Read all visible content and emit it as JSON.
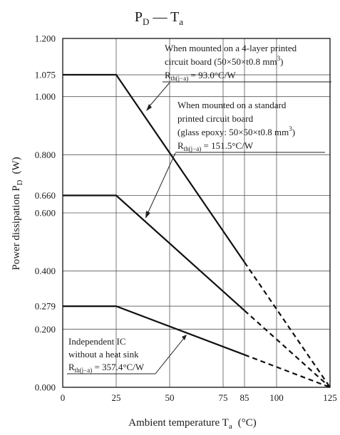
{
  "chart_data": {
    "type": "line",
    "title": "P",
    "title_sub_1": "D",
    "title_dash": " — T",
    "title_sub_2": "a",
    "xlabel_main": "Ambient temperature T",
    "xlabel_sub": "a",
    "xlabel_unit": "(°C)",
    "ylabel_main": "Power dissipation P",
    "ylabel_sub": "D",
    "ylabel_unit": "(W)",
    "xlim": [
      0,
      125
    ],
    "ylim": [
      0,
      1.2
    ],
    "x_ticks": [
      0,
      25,
      50,
      75,
      85,
      100,
      125
    ],
    "x_tick_labels": [
      "0",
      "25",
      "50",
      "75",
      "85",
      "100",
      "125"
    ],
    "y_ticks": [
      0,
      0.2,
      0.279,
      0.4,
      0.6,
      0.66,
      0.8,
      1.0,
      1.075,
      1.2
    ],
    "y_tick_labels": [
      "0.000",
      "0.200",
      "0.279",
      "0.400",
      "0.600",
      "0.660",
      "0.800",
      "1.000",
      "1.075",
      "1.200"
    ],
    "grid": true,
    "series": [
      {
        "values": [
          [
            0,
            1.075
          ],
          [
            25,
            1.075
          ],
          [
            85,
            0.43
          ]
        ],
        "extrapolated": [
          [
            85,
            0.43
          ],
          [
            125,
            0
          ]
        ],
        "annotation": {
          "line1": "When mounted on a 4-layer printed",
          "line2": "circuit board (50×50×t0.8 mm",
          "line2_sup": "3",
          "line2_end": ")",
          "r_main": "R",
          "r_sub": "th(j−a)",
          "r_value": " = 93.0°C/W"
        }
      },
      {
        "values": [
          [
            0,
            0.66
          ],
          [
            25,
            0.66
          ],
          [
            85,
            0.264
          ]
        ],
        "extrapolated": [
          [
            85,
            0.264
          ],
          [
            125,
            0
          ]
        ],
        "annotation": {
          "line1": "When mounted on a standard",
          "line2": "printed circuit board",
          "line3": "(glass epoxy: 50×50×t0.8 mm",
          "line3_sup": "3",
          "line3_end": ")",
          "r_main": "R",
          "r_sub": "th(j−a)",
          "r_value": " = 151.5°C/W"
        }
      },
      {
        "values": [
          [
            0,
            0.279
          ],
          [
            25,
            0.279
          ],
          [
            85,
            0.112
          ]
        ],
        "extrapolated": [
          [
            85,
            0.112
          ],
          [
            125,
            0
          ]
        ],
        "annotation": {
          "line1": "Independent IC",
          "line2": "without a heat sink",
          "r_main": "R",
          "r_sub": "th(j−a)",
          "r_value": " = 357.4°C/W"
        }
      }
    ]
  }
}
